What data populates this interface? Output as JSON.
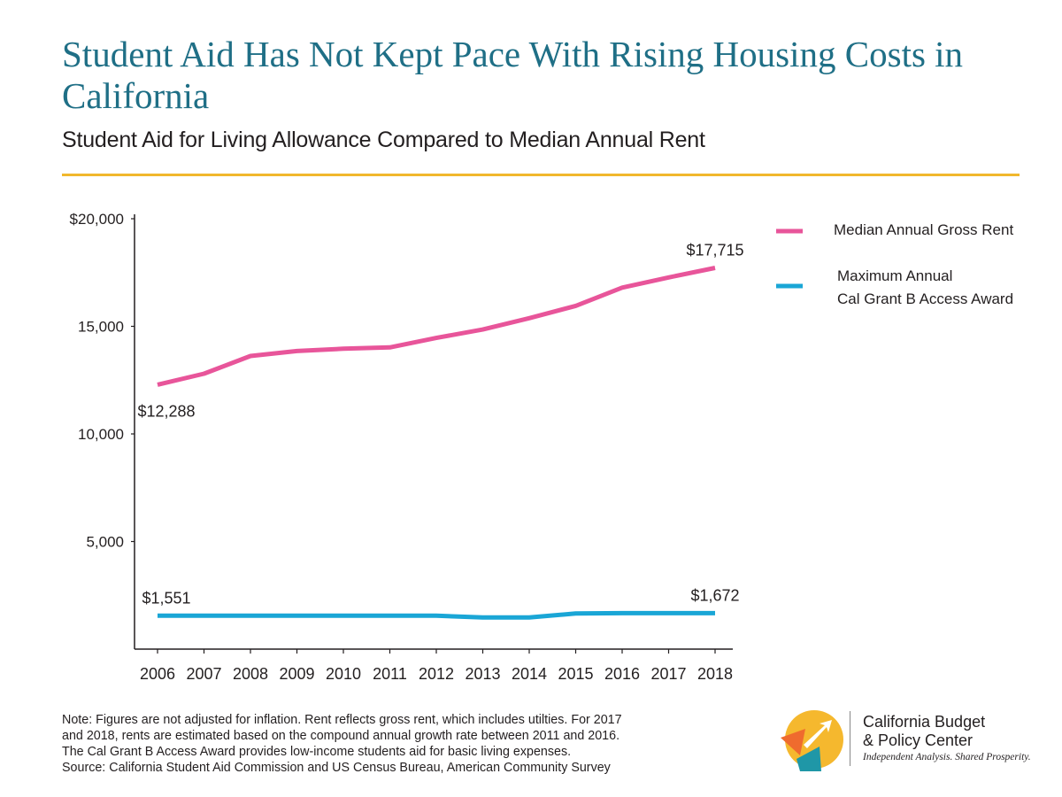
{
  "header": {
    "title": "Student Aid Has Not Kept Pace With Rising Housing Costs in California",
    "subtitle": "Student Aid for Living Allowance Compared to Median Annual Rent"
  },
  "chart_data": {
    "type": "line",
    "x": [
      2006,
      2007,
      2008,
      2009,
      2010,
      2011,
      2012,
      2013,
      2014,
      2015,
      2016,
      2017,
      2018
    ],
    "ylim": [
      0,
      20000
    ],
    "yticks": [
      {
        "value": 20000,
        "label": "$20,000"
      },
      {
        "value": 15000,
        "label": "15,000"
      },
      {
        "value": 10000,
        "label": "10,000"
      },
      {
        "value": 5000,
        "label": "5,000"
      }
    ],
    "legend_position": "top-right",
    "series": [
      {
        "name": "Median Annual Gross Rent",
        "color": "#e8559a",
        "values": [
          12288,
          12800,
          13620,
          13850,
          13960,
          14020,
          14460,
          14850,
          15380,
          15950,
          16800,
          17270,
          17715
        ],
        "labels": [
          {
            "index": 0,
            "text": "$12,288",
            "pos": "below"
          },
          {
            "index": 12,
            "text": "$17,715",
            "pos": "above"
          }
        ]
      },
      {
        "name": "Maximum Annual Cal Grant B Access Award",
        "legend_lines": [
          "Maximum Annual",
          "Cal Grant B Access Award"
        ],
        "color": "#1aa6d6",
        "values": [
          1551,
          1551,
          1551,
          1551,
          1551,
          1551,
          1551,
          1473,
          1473,
          1656,
          1670,
          1672,
          1672
        ],
        "labels": [
          {
            "index": 0,
            "text": "$1,551",
            "pos": "above"
          },
          {
            "index": 12,
            "text": "$1,672",
            "pos": "above"
          }
        ]
      }
    ]
  },
  "notes": [
    "Note: Figures are not adjusted for inflation. Rent reflects gross rent, which includes utilties. For 2017",
    "and 2018, rents are estimated based on the compound annual growth rate between 2011 and 2016.",
    "The Cal Grant B Access Award provides low-income students aid for basic living expenses.",
    "Source: California Student Aid Commission and US Census Bureau, American Community Survey"
  ],
  "logo": {
    "name_line1": "California Budget",
    "name_line2": "& Policy Center",
    "tagline": "Independent Analysis. Shared Prosperity.",
    "colors": {
      "yellow": "#f5b82e",
      "orange": "#ef6b2e",
      "teal": "#1f97a7"
    }
  }
}
